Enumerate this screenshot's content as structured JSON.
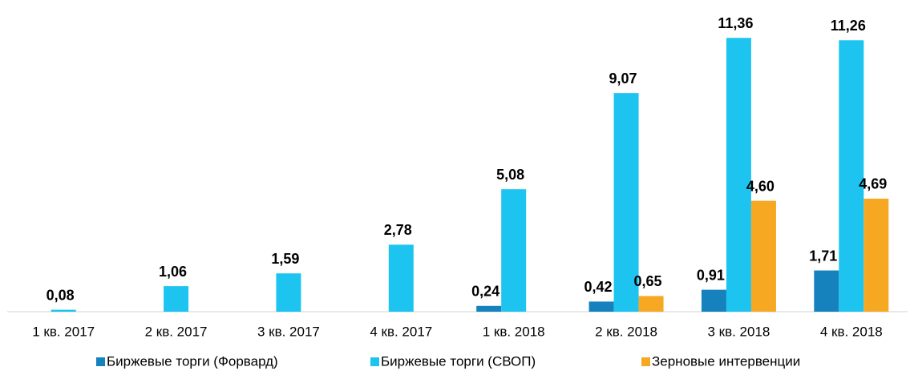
{
  "chart_data": {
    "type": "bar",
    "categories": [
      "1 кв. 2017",
      "2 кв. 2017",
      "3 кв. 2017",
      "4 кв. 2017",
      "1 кв. 2018",
      "2 кв. 2018",
      "3 кв. 2018",
      "4 кв. 2018"
    ],
    "series": [
      {
        "name": "Биржевые торги (Форвард)",
        "color": "#1582bd",
        "values": [
          null,
          null,
          null,
          null,
          0.24,
          0.42,
          0.91,
          1.71
        ],
        "value_labels": [
          null,
          null,
          null,
          null,
          "0,24",
          "0,42",
          "0,91",
          "1,71"
        ]
      },
      {
        "name": "Биржевые торги (СВОП)",
        "color": "#1ec4f0",
        "values": [
          0.08,
          1.06,
          1.59,
          2.78,
          5.08,
          9.07,
          11.36,
          11.26
        ],
        "value_labels": [
          "0,08",
          "1,06",
          "1,59",
          "2,78",
          "5,08",
          "9,07",
          "11,36",
          "11,26"
        ]
      },
      {
        "name": "Зерновые интервенции",
        "color": "#f7a823",
        "values": [
          null,
          null,
          null,
          null,
          null,
          0.65,
          4.6,
          4.69
        ],
        "value_labels": [
          null,
          null,
          null,
          null,
          null,
          "0,65",
          "4,60",
          "4,69"
        ]
      }
    ],
    "ylim": [
      0,
      12
    ],
    "legend": "bottom"
  }
}
